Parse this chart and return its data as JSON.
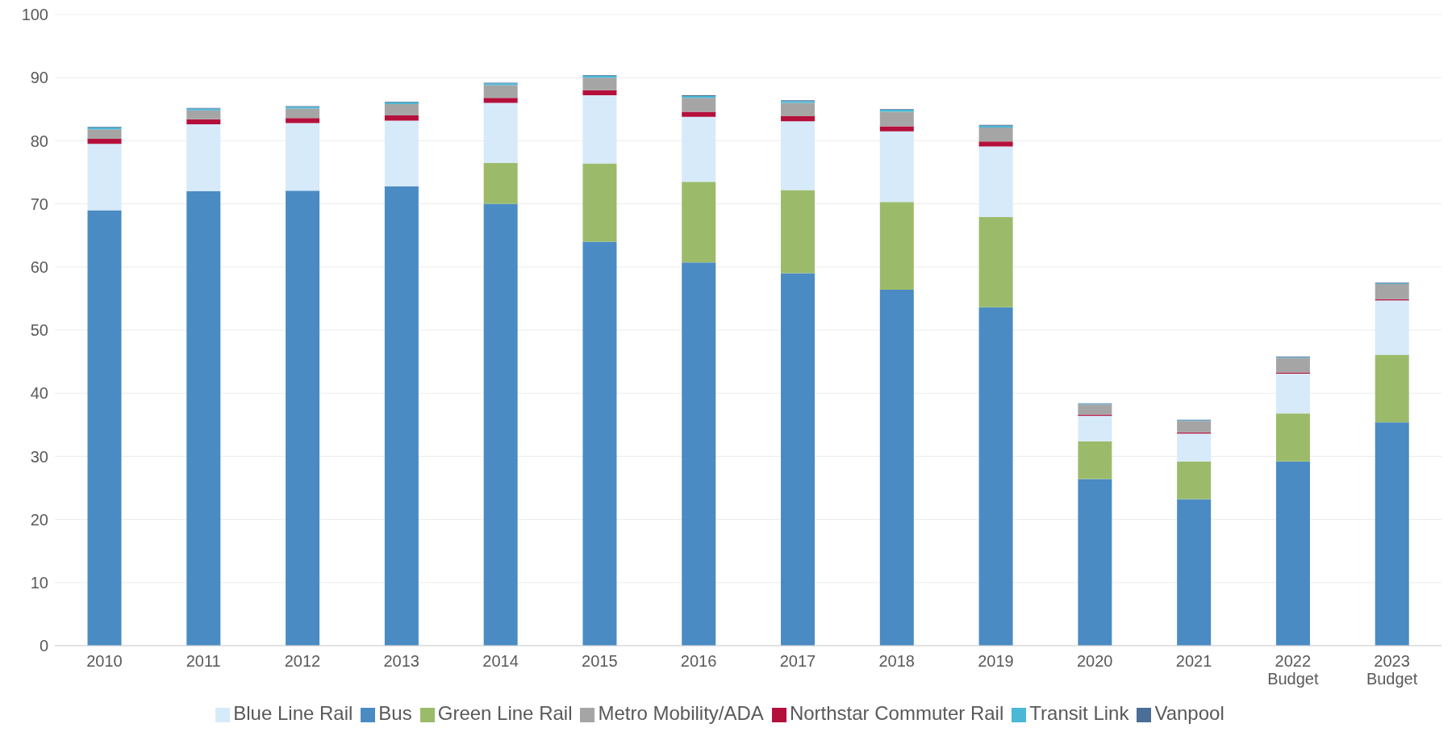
{
  "chart_data": {
    "type": "bar",
    "stacked": true,
    "categories": [
      "2010",
      "2011",
      "2012",
      "2013",
      "2014",
      "2015",
      "2016",
      "2017",
      "2018",
      "2019",
      "2020",
      "2021",
      "2022\nBudget",
      "2023\nBudget"
    ],
    "ylim": [
      0,
      100
    ],
    "yticks": [
      0,
      10,
      20,
      30,
      40,
      50,
      60,
      70,
      80,
      90,
      100
    ],
    "grid": "y",
    "legend": "bottom",
    "series": [
      {
        "name": "Bus",
        "color": "#4a8bc4",
        "values": [
          69,
          72,
          72.1,
          72.8,
          70,
          64,
          60.7,
          59,
          56.4,
          53.6,
          26.4,
          23.2,
          29.2,
          35.4
        ]
      },
      {
        "name": "Green Line Rail",
        "color": "#9bbb6a",
        "values": [
          0,
          0,
          0,
          0,
          6.5,
          12.4,
          12.8,
          13.2,
          13.9,
          14.3,
          6,
          6,
          7.6,
          10.7
        ]
      },
      {
        "name": "Blue Line Rail",
        "color": "#d6eafa",
        "values": [
          10.5,
          10.6,
          10.7,
          10.4,
          9.5,
          10.8,
          10.3,
          10.9,
          11.2,
          11.2,
          4,
          4.4,
          6.3,
          8.6
        ]
      },
      {
        "name": "Northstar Commuter Rail",
        "color": "#b5103c",
        "values": [
          0.8,
          0.8,
          0.8,
          0.8,
          0.8,
          0.8,
          0.8,
          0.8,
          0.8,
          0.8,
          0.2,
          0.2,
          0.2,
          0.2
        ]
      },
      {
        "name": "Metro Mobility/ADA",
        "color": "#a5a5a5",
        "values": [
          1.5,
          1.4,
          1.5,
          1.8,
          2,
          2,
          2.2,
          2.1,
          2.3,
          2.2,
          1.6,
          1.8,
          2.3,
          2.4
        ]
      },
      {
        "name": "Transit Link",
        "color": "#4bb8d6",
        "values": [
          0.3,
          0.3,
          0.3,
          0.3,
          0.3,
          0.3,
          0.3,
          0.3,
          0.3,
          0.3,
          0.1,
          0.1,
          0.1,
          0.1
        ]
      },
      {
        "name": "Vanpool",
        "color": "#4a6e96",
        "values": [
          0.1,
          0.1,
          0.1,
          0.1,
          0.1,
          0.1,
          0.1,
          0.1,
          0.1,
          0.1,
          0.1,
          0.1,
          0.1,
          0.1
        ]
      }
    ]
  }
}
